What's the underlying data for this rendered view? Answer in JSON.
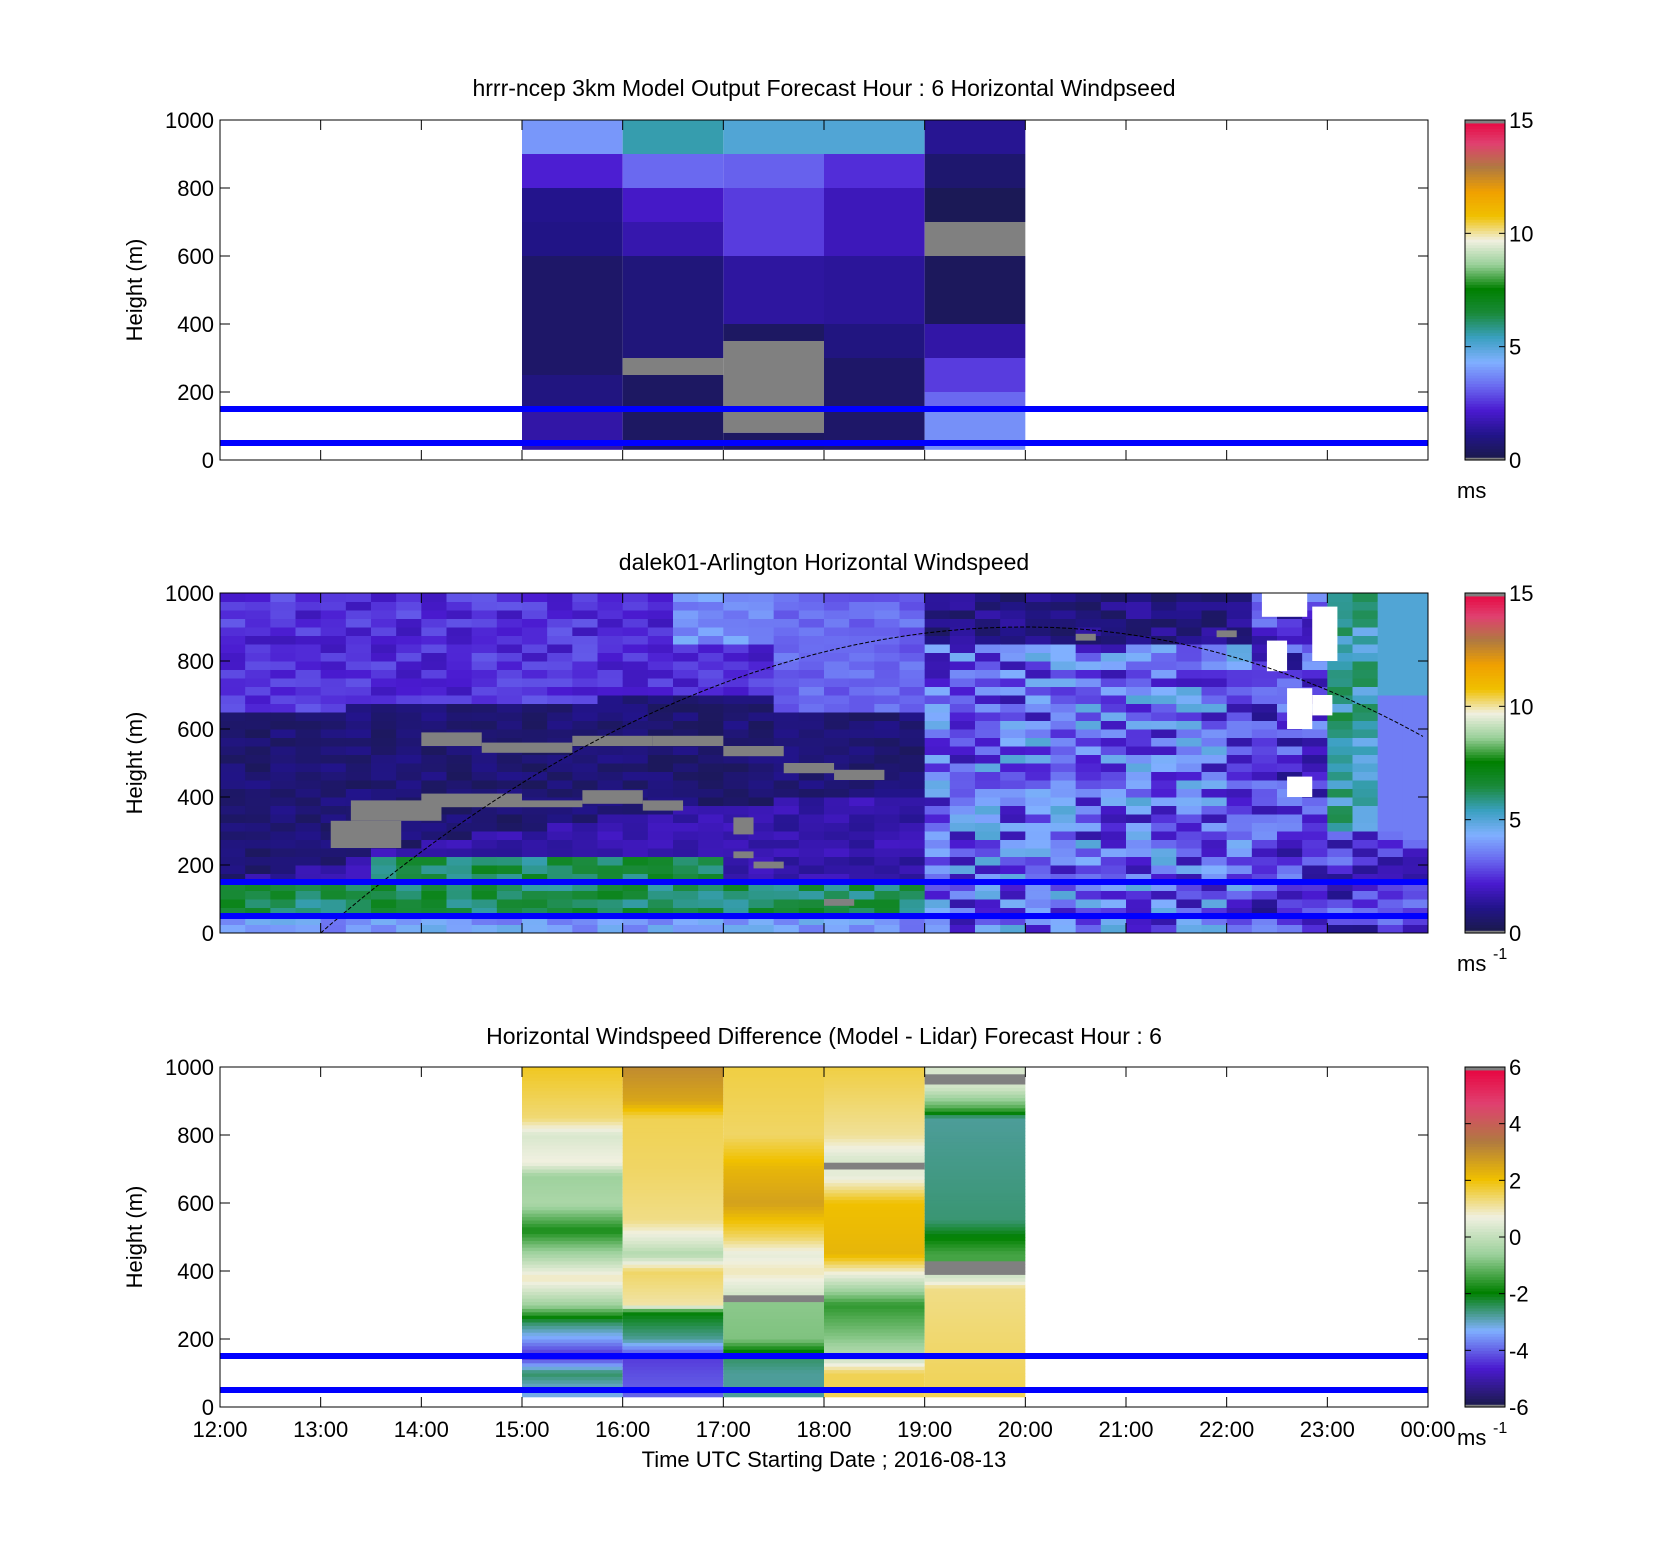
{
  "colors": {
    "reference_line": "#0000ff",
    "sun_curve": "#000000",
    "missing": "#808080",
    "speed_scale": [
      "#1a1a4a",
      "#22148a",
      "#4a1ad0",
      "#6a6af0",
      "#80b0ff",
      "#3aa0c0",
      "#1a8a3a",
      "#008000",
      "#9ad09a",
      "#f0f0e0",
      "#f0c000",
      "#f0a000",
      "#b07a40",
      "#e04070",
      "#e8003c"
    ],
    "diff_scale": [
      "#1a1a4a",
      "#4a1ad0",
      "#80b0ff",
      "#008000",
      "#9ad09a",
      "#f0f0e0",
      "#f0c000",
      "#b07a40",
      "#e04070",
      "#e8003c"
    ]
  },
  "chart_data": [
    {
      "type": "heatmap",
      "title": "hrrr-ncep 3km Model Output   Forecast Hour : 6 Horizontal Windpseed",
      "ylabel": "Height (m)",
      "ylim": [
        0,
        1000
      ],
      "yticks": [
        "0",
        "200",
        "400",
        "600",
        "800",
        "1000"
      ],
      "xlim_hours": [
        12,
        24
      ],
      "colorbar": {
        "range": [
          0,
          15
        ],
        "ticks": [
          "0",
          "5",
          "10",
          "15"
        ],
        "unit": "ms"
      },
      "reference_lines_m": [
        50,
        150
      ],
      "columns": [
        {
          "start_hour": 15,
          "end_hour": 16,
          "layers": [
            {
              "bottom": 900,
              "top": 1000,
              "value": 3.9
            },
            {
              "bottom": 800,
              "top": 900,
              "value": 2.2
            },
            {
              "bottom": 700,
              "top": 800,
              "value": 1.1
            },
            {
              "bottom": 600,
              "top": 700,
              "value": 1.0
            },
            {
              "bottom": 250,
              "top": 600,
              "value": 0.5
            },
            {
              "bottom": 150,
              "top": 250,
              "value": 0.9
            },
            {
              "bottom": 30,
              "top": 150,
              "value": 1.5
            }
          ]
        },
        {
          "start_hour": 16,
          "end_hour": 17,
          "layers": [
            {
              "bottom": 900,
              "top": 1000,
              "value": 5.5
            },
            {
              "bottom": 800,
              "top": 900,
              "value": 3.2
            },
            {
              "bottom": 700,
              "top": 800,
              "value": 2.0
            },
            {
              "bottom": 600,
              "top": 700,
              "value": 1.6
            },
            {
              "bottom": 300,
              "top": 600,
              "value": 0.8
            },
            {
              "bottom": 250,
              "top": 300,
              "value": -1
            },
            {
              "bottom": 30,
              "top": 250,
              "value": 0.4
            }
          ]
        },
        {
          "start_hour": 17,
          "end_hour": 18,
          "layers": [
            {
              "bottom": 900,
              "top": 1000,
              "value": 5.0
            },
            {
              "bottom": 800,
              "top": 900,
              "value": 3.1
            },
            {
              "bottom": 600,
              "top": 800,
              "value": 2.6
            },
            {
              "bottom": 400,
              "top": 600,
              "value": 1.4
            },
            {
              "bottom": 350,
              "top": 400,
              "value": 0.4
            },
            {
              "bottom": 80,
              "top": 350,
              "value": -1
            },
            {
              "bottom": 30,
              "top": 80,
              "value": 0.4
            }
          ]
        },
        {
          "start_hour": 18,
          "end_hour": 19,
          "layers": [
            {
              "bottom": 900,
              "top": 1000,
              "value": 5.0
            },
            {
              "bottom": 800,
              "top": 900,
              "value": 2.4
            },
            {
              "bottom": 600,
              "top": 800,
              "value": 1.8
            },
            {
              "bottom": 400,
              "top": 600,
              "value": 1.3
            },
            {
              "bottom": 300,
              "top": 400,
              "value": 0.9
            },
            {
              "bottom": 30,
              "top": 300,
              "value": 0.5
            }
          ]
        },
        {
          "start_hour": 19,
          "end_hour": 20,
          "layers": [
            {
              "bottom": 900,
              "top": 1000,
              "value": 1.2
            },
            {
              "bottom": 800,
              "top": 900,
              "value": 0.6
            },
            {
              "bottom": 700,
              "top": 800,
              "value": 0.2
            },
            {
              "bottom": 600,
              "top": 700,
              "value": -1
            },
            {
              "bottom": 400,
              "top": 600,
              "value": 0.3
            },
            {
              "bottom": 300,
              "top": 400,
              "value": 1.5
            },
            {
              "bottom": 200,
              "top": 300,
              "value": 2.6
            },
            {
              "bottom": 150,
              "top": 200,
              "value": 3.2
            },
            {
              "bottom": 30,
              "top": 150,
              "value": 3.8
            }
          ]
        }
      ]
    },
    {
      "type": "heatmap",
      "title": "dalek01-Arlington  Horizontal Windspeed",
      "ylabel": "Height (m)",
      "ylim": [
        0,
        1000
      ],
      "yticks": [
        "0",
        "200",
        "400",
        "600",
        "800",
        "1000"
      ],
      "xlim_hours": [
        12,
        24
      ],
      "colorbar": {
        "range": [
          0,
          15
        ],
        "ticks": [
          "0",
          "5",
          "10",
          "15"
        ],
        "unit": "ms",
        "unit_exponent": "-1"
      },
      "reference_lines_m": [
        50,
        150
      ],
      "time_step_hours": 0.25,
      "height_step_m": 25,
      "missing_bands": [
        {
          "start_hour": 13.1,
          "end_hour": 13.8,
          "bottom": 250,
          "top": 330
        },
        {
          "start_hour": 13.3,
          "end_hour": 14.2,
          "bottom": 330,
          "top": 390
        },
        {
          "start_hour": 14.0,
          "end_hour": 15.0,
          "bottom": 370,
          "top": 410
        },
        {
          "start_hour": 15.0,
          "end_hour": 15.6,
          "bottom": 370,
          "top": 390
        },
        {
          "start_hour": 15.6,
          "end_hour": 16.2,
          "bottom": 380,
          "top": 420
        },
        {
          "start_hour": 16.2,
          "end_hour": 16.6,
          "bottom": 360,
          "top": 390
        },
        {
          "start_hour": 17.1,
          "end_hour": 17.3,
          "bottom": 290,
          "top": 340
        },
        {
          "start_hour": 17.1,
          "end_hour": 17.3,
          "bottom": 220,
          "top": 240
        },
        {
          "start_hour": 17.3,
          "end_hour": 17.6,
          "bottom": 190,
          "top": 210
        },
        {
          "start_hour": 18.0,
          "end_hour": 18.3,
          "bottom": 80,
          "top": 100
        },
        {
          "start_hour": 14.0,
          "end_hour": 14.6,
          "bottom": 550,
          "top": 590
        },
        {
          "start_hour": 14.6,
          "end_hour": 15.5,
          "bottom": 530,
          "top": 560
        },
        {
          "start_hour": 15.5,
          "end_hour": 16.3,
          "bottom": 550,
          "top": 580
        },
        {
          "start_hour": 16.3,
          "end_hour": 17.0,
          "bottom": 550,
          "top": 580
        },
        {
          "start_hour": 17.0,
          "end_hour": 17.6,
          "bottom": 520,
          "top": 550
        },
        {
          "start_hour": 17.6,
          "end_hour": 18.1,
          "bottom": 470,
          "top": 500
        },
        {
          "start_hour": 18.1,
          "end_hour": 18.6,
          "bottom": 450,
          "top": 480
        },
        {
          "start_hour": 20.5,
          "end_hour": 20.7,
          "bottom": 860,
          "top": 880
        },
        {
          "start_hour": 21.9,
          "end_hour": 22.1,
          "bottom": 870,
          "top": 890
        }
      ],
      "gap_bands": [
        {
          "start_hour": 22.35,
          "end_hour": 22.8,
          "bottom": 930,
          "top": 1000
        },
        {
          "start_hour": 22.4,
          "end_hour": 22.6,
          "bottom": 770,
          "top": 860
        },
        {
          "start_hour": 22.6,
          "end_hour": 22.85,
          "bottom": 400,
          "top": 460
        },
        {
          "start_hour": 22.6,
          "end_hour": 22.85,
          "bottom": 600,
          "top": 720
        },
        {
          "start_hour": 22.85,
          "end_hour": 23.1,
          "bottom": 800,
          "top": 960
        },
        {
          "start_hour": 22.85,
          "end_hour": 23.05,
          "bottom": 640,
          "top": 700
        }
      ],
      "sun_elevation_curve": {
        "peak_hour": 20.0,
        "peak_height": 900,
        "rise_hour": 13.0,
        "end_height": 570
      }
    },
    {
      "type": "heatmap",
      "title": "Horizontal Windspeed Difference (Model - Lidar) Forecast Hour : 6",
      "ylabel": "Height (m)",
      "xlabel": "Time UTC  Starting Date ; 2016-08-13",
      "ylim": [
        0,
        1000
      ],
      "yticks": [
        "0",
        "200",
        "400",
        "600",
        "800",
        "1000"
      ],
      "xlim_hours": [
        12,
        24
      ],
      "xticks": [
        "12:00",
        "13:00",
        "14:00",
        "15:00",
        "16:00",
        "17:00",
        "18:00",
        "19:00",
        "20:00",
        "21:00",
        "22:00",
        "23:00",
        "00:00"
      ],
      "colorbar": {
        "range": [
          -6,
          6
        ],
        "ticks": [
          "-6",
          "-4",
          "-2",
          "0",
          "2",
          "4",
          "6"
        ],
        "unit": "ms",
        "unit_exponent": "-1"
      },
      "reference_lines_m": [
        50,
        150
      ],
      "columns": [
        {
          "start_hour": 15,
          "end_hour": 16,
          "profile": [
            [
              1000,
              1.8
            ],
            [
              850,
              1.3
            ],
            [
              800,
              0.3
            ],
            [
              720,
              0.7
            ],
            [
              680,
              -0.6
            ],
            [
              600,
              -0.4
            ],
            [
              520,
              -1.8
            ],
            [
              450,
              -0.5
            ],
            [
              380,
              0.9
            ],
            [
              300,
              -0.6
            ],
            [
              250,
              -2.5
            ],
            [
              200,
              -3.5
            ],
            [
              150,
              -4.6
            ],
            [
              100,
              -2.5
            ],
            [
              50,
              -3.2
            ],
            [
              30,
              -3.2
            ]
          ]
        },
        {
          "start_hour": 16,
          "end_hour": 17,
          "profile": [
            [
              1000,
              3.0
            ],
            [
              900,
              2.5
            ],
            [
              850,
              1.5
            ],
            [
              700,
              1.4
            ],
            [
              550,
              1.2
            ],
            [
              480,
              0.2
            ],
            [
              450,
              -0.3
            ],
            [
              400,
              1.4
            ],
            [
              300,
              1.0
            ],
            [
              280,
              -2.0
            ],
            [
              200,
              -2.8
            ],
            [
              150,
              -4.4
            ],
            [
              100,
              -4.2
            ],
            [
              30,
              -4.0
            ]
          ]
        },
        {
          "start_hour": 17,
          "end_hour": 18,
          "profile": [
            [
              1000,
              1.6
            ],
            [
              800,
              1.4
            ],
            [
              700,
              2.2
            ],
            [
              600,
              2.6
            ],
            [
              500,
              1.4
            ],
            [
              450,
              0.5
            ],
            [
              400,
              0.9
            ],
            [
              330,
              0.2
            ],
            [
              320,
              -6.0
            ],
            [
              300,
              -0.8
            ],
            [
              200,
              -0.9
            ],
            [
              150,
              -2.5
            ],
            [
              100,
              -2.8
            ],
            [
              30,
              -2.8
            ]
          ]
        },
        {
          "start_hour": 18,
          "end_hour": 19,
          "profile": [
            [
              1000,
              1.6
            ],
            [
              800,
              1.1
            ],
            [
              730,
              0.3
            ],
            [
              710,
              -6.0
            ],
            [
              680,
              0.5
            ],
            [
              600,
              2.0
            ],
            [
              450,
              2.2
            ],
            [
              380,
              0.3
            ],
            [
              300,
              -1.6
            ],
            [
              200,
              -0.8
            ],
            [
              150,
              -0.2
            ],
            [
              100,
              1.5
            ],
            [
              30,
              1.5
            ]
          ]
        },
        {
          "start_hour": 19,
          "end_hour": 20,
          "profile": [
            [
              1000,
              0.3
            ],
            [
              960,
              -6.0
            ],
            [
              940,
              0.2
            ],
            [
              880,
              -1.3
            ],
            [
              850,
              -2.8
            ],
            [
              550,
              -2.6
            ],
            [
              450,
              -1.4
            ],
            [
              400,
              -6.0
            ],
            [
              380,
              0.2
            ],
            [
              350,
              1.2
            ],
            [
              30,
              1.5
            ]
          ]
        }
      ]
    }
  ]
}
